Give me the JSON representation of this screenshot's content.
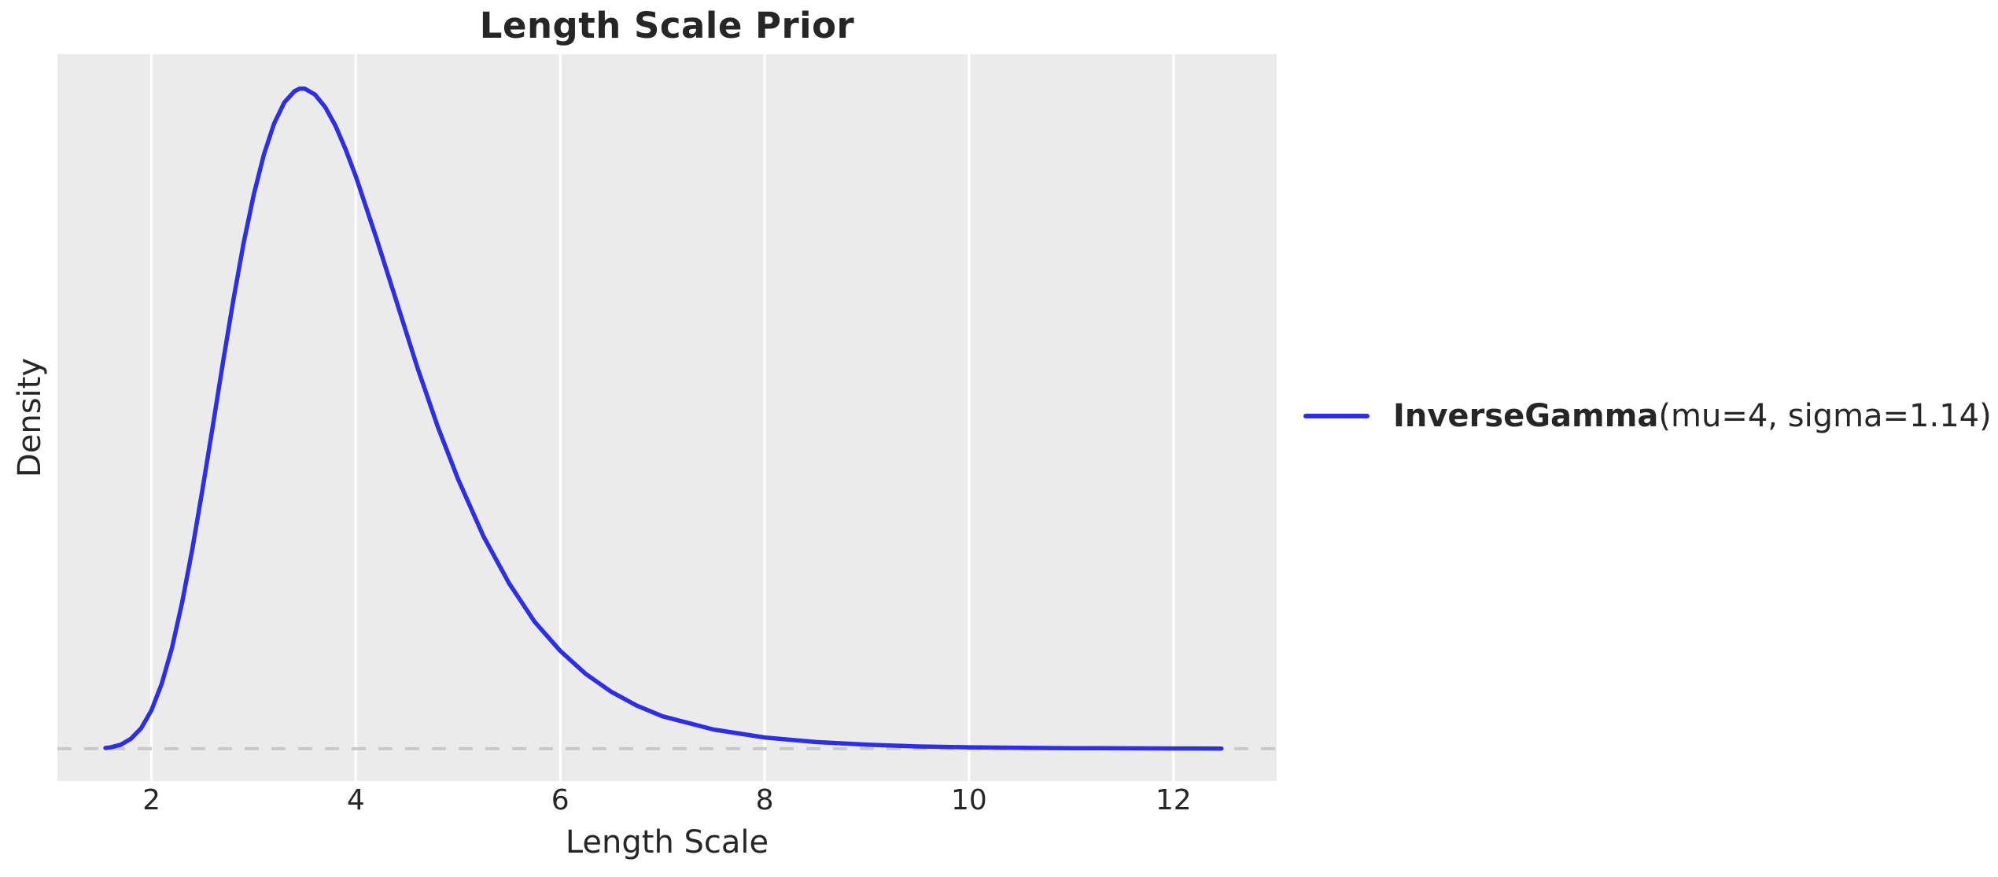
{
  "title": "Length Scale Prior",
  "axes": {
    "xlabel": "Length Scale",
    "ylabel": "Density"
  },
  "legend": {
    "name": "InverseGamma",
    "params": "(mu=4, sigma=1.14)"
  },
  "colors": {
    "curve": "#2e2ee2",
    "axes_bg": "#ebebeb",
    "grid": "#ffffff",
    "zero_line": "#c9c9c9",
    "text": "#262626"
  },
  "chart_data": {
    "type": "line",
    "title": "Length Scale Prior",
    "xlabel": "Length Scale",
    "ylabel": "Density",
    "xlim": [
      1.08,
      13.01
    ],
    "ylim": [
      -0.049,
      1.051
    ],
    "x_ticks": [
      2,
      4,
      6,
      8,
      10,
      12
    ],
    "y_ticks": [],
    "grid": "vertical-only",
    "legend_position": "outside-right-center",
    "series": [
      {
        "name": "InverseGamma(mu=4, sigma=1.14)",
        "color": "#2e2ee2",
        "x": [
          1.55,
          1.6,
          1.7,
          1.8,
          1.9,
          2.0,
          2.1,
          2.2,
          2.3,
          2.4,
          2.5,
          2.6,
          2.7,
          2.8,
          2.9,
          3.0,
          3.1,
          3.2,
          3.3,
          3.4,
          3.45,
          3.5,
          3.6,
          3.7,
          3.8,
          3.9,
          4.0,
          4.2,
          4.4,
          4.6,
          4.8,
          5.0,
          5.25,
          5.5,
          5.75,
          6.0,
          6.25,
          6.5,
          6.75,
          7.0,
          7.5,
          8.0,
          8.5,
          9.0,
          9.5,
          10.0,
          10.5,
          11.0,
          11.5,
          12.0,
          12.47
        ],
        "y": [
          0.001,
          0.002,
          0.006,
          0.015,
          0.031,
          0.058,
          0.098,
          0.152,
          0.221,
          0.302,
          0.393,
          0.488,
          0.585,
          0.678,
          0.764,
          0.838,
          0.899,
          0.946,
          0.978,
          0.995,
          0.999,
          0.999,
          0.99,
          0.971,
          0.943,
          0.907,
          0.866,
          0.773,
          0.676,
          0.578,
          0.488,
          0.408,
          0.321,
          0.25,
          0.192,
          0.148,
          0.113,
          0.086,
          0.065,
          0.049,
          0.029,
          0.017,
          0.01,
          0.006,
          0.0034,
          0.0021,
          0.0013,
          0.0008,
          0.0005,
          0.0003,
          0.0002
        ]
      }
    ],
    "annotations": [
      {
        "type": "hline",
        "y": 0,
        "style": "dashed",
        "color": "#c9c9c9"
      }
    ],
    "distribution": {
      "family": "InverseGamma",
      "mu": 4,
      "sigma": 1.14,
      "peak_x": 3.48
    }
  }
}
